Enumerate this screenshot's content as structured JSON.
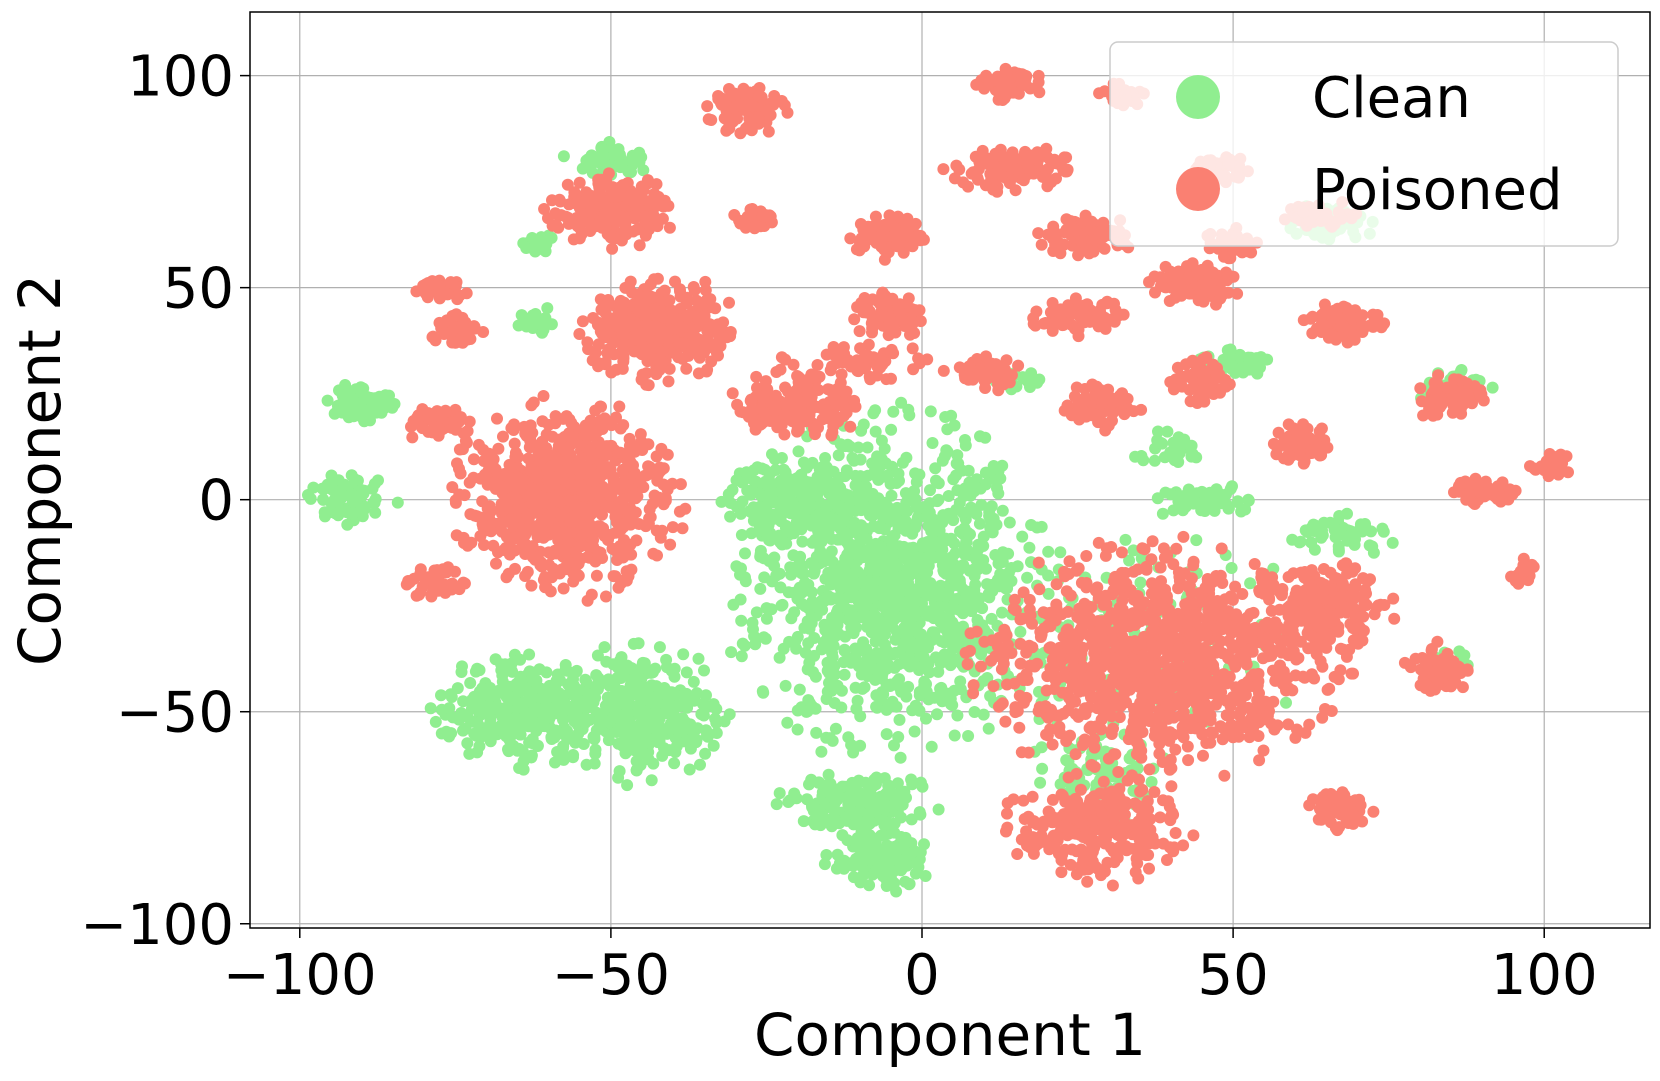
{
  "chart_data": {
    "type": "scatter",
    "title": "",
    "xlabel": "Component 1",
    "ylabel": "Component 2",
    "xlim": [
      -108,
      117
    ],
    "ylim": [
      -101,
      115
    ],
    "xticks": [
      -100,
      -50,
      0,
      50,
      100
    ],
    "yticks": [
      -100,
      -50,
      0,
      50,
      100
    ],
    "xtick_labels": [
      "−100",
      "−50",
      "0",
      "50",
      "100"
    ],
    "ytick_labels": [
      "−100",
      "−50",
      "0",
      "50",
      "100"
    ],
    "grid": true,
    "legend_position": "top-right",
    "series": [
      {
        "name": "Clean",
        "color": "#90ee90",
        "clusters": [
          {
            "cx": -5,
            "cy": -20,
            "rx": 24,
            "ry": 38,
            "n": 1200
          },
          {
            "cx": -10,
            "cy": -72,
            "rx": 12,
            "ry": 7,
            "n": 200
          },
          {
            "cx": -7,
            "cy": -85,
            "rx": 8,
            "ry": 7,
            "n": 140
          },
          {
            "cx": -45,
            "cy": -50,
            "rx": 15,
            "ry": 16,
            "n": 350
          },
          {
            "cx": -65,
            "cy": -50,
            "rx": 13,
            "ry": 12,
            "n": 280
          },
          {
            "cx": -20,
            "cy": 0,
            "rx": 12,
            "ry": 10,
            "n": 220
          },
          {
            "cx": -90,
            "cy": 23,
            "rx": 5,
            "ry": 5,
            "n": 70
          },
          {
            "cx": -92,
            "cy": 0,
            "rx": 7,
            "ry": 6,
            "n": 80
          },
          {
            "cx": -50,
            "cy": 80,
            "rx": 7,
            "ry": 4,
            "n": 60
          },
          {
            "cx": 45,
            "cy": 0,
            "rx": 8,
            "ry": 4,
            "n": 60
          },
          {
            "cx": 65,
            "cy": 65,
            "rx": 7,
            "ry": 5,
            "n": 60
          },
          {
            "cx": 68,
            "cy": -8,
            "rx": 8,
            "ry": 5,
            "n": 50
          },
          {
            "cx": 85,
            "cy": 27,
            "rx": 6,
            "ry": 5,
            "n": 40
          },
          {
            "cx": 50,
            "cy": 32,
            "rx": 6,
            "ry": 4,
            "n": 45
          },
          {
            "cx": 40,
            "cy": 12,
            "rx": 7,
            "ry": 4,
            "n": 35
          },
          {
            "cx": 15,
            "cy": 28,
            "rx": 4,
            "ry": 3,
            "n": 25
          },
          {
            "cx": -62,
            "cy": 42,
            "rx": 3,
            "ry": 4,
            "n": 25
          },
          {
            "cx": 35,
            "cy": -35,
            "rx": 25,
            "ry": 25,
            "n": 180
          },
          {
            "cx": 28,
            "cy": -65,
            "rx": 12,
            "ry": 10,
            "n": 80
          },
          {
            "cx": -62,
            "cy": 60,
            "rx": 3,
            "ry": 3,
            "n": 20
          },
          {
            "cx": 85,
            "cy": -38,
            "rx": 4,
            "ry": 4,
            "n": 25
          }
        ]
      },
      {
        "name": "Poisoned",
        "color": "#fa8072",
        "clusters": [
          {
            "cx": -57,
            "cy": 0,
            "rx": 17,
            "ry": 22,
            "n": 800
          },
          {
            "cx": -42,
            "cy": 40,
            "rx": 12,
            "ry": 12,
            "n": 380
          },
          {
            "cx": -50,
            "cy": 68,
            "rx": 10,
            "ry": 8,
            "n": 220
          },
          {
            "cx": 38,
            "cy": -38,
            "rx": 28,
            "ry": 26,
            "n": 1100
          },
          {
            "cx": 28,
            "cy": -78,
            "rx": 14,
            "ry": 12,
            "n": 300
          },
          {
            "cx": 65,
            "cy": -25,
            "rx": 10,
            "ry": 10,
            "n": 200
          },
          {
            "cx": -20,
            "cy": 22,
            "rx": 10,
            "ry": 8,
            "n": 180
          },
          {
            "cx": -28,
            "cy": 92,
            "rx": 6,
            "ry": 6,
            "n": 100
          },
          {
            "cx": 14,
            "cy": 98,
            "rx": 5,
            "ry": 4,
            "n": 70
          },
          {
            "cx": 14,
            "cy": 78,
            "rx": 10,
            "ry": 5,
            "n": 120
          },
          {
            "cx": -5,
            "cy": 62,
            "rx": 6,
            "ry": 5,
            "n": 90
          },
          {
            "cx": -5,
            "cy": 44,
            "rx": 6,
            "ry": 6,
            "n": 100
          },
          {
            "cx": 27,
            "cy": 62,
            "rx": 8,
            "ry": 5,
            "n": 100
          },
          {
            "cx": 44,
            "cy": 51,
            "rx": 7,
            "ry": 5,
            "n": 100
          },
          {
            "cx": 25,
            "cy": 43,
            "rx": 8,
            "ry": 4,
            "n": 80
          },
          {
            "cx": 29,
            "cy": 22,
            "rx": 6,
            "ry": 5,
            "n": 80
          },
          {
            "cx": 45,
            "cy": 28,
            "rx": 5,
            "ry": 5,
            "n": 80
          },
          {
            "cx": 85,
            "cy": 24,
            "rx": 6,
            "ry": 5,
            "n": 80
          },
          {
            "cx": 90,
            "cy": 2,
            "rx": 5,
            "ry": 3,
            "n": 70
          },
          {
            "cx": 68,
            "cy": 42,
            "rx": 6,
            "ry": 5,
            "n": 80
          },
          {
            "cx": 61,
            "cy": 13,
            "rx": 5,
            "ry": 5,
            "n": 60
          },
          {
            "cx": 67,
            "cy": -73,
            "rx": 5,
            "ry": 5,
            "n": 70
          },
          {
            "cx": 83,
            "cy": -40,
            "rx": 5,
            "ry": 6,
            "n": 70
          },
          {
            "cx": -78,
            "cy": 18,
            "rx": 5,
            "ry": 4,
            "n": 70
          },
          {
            "cx": -77,
            "cy": 50,
            "rx": 4,
            "ry": 3,
            "n": 40
          },
          {
            "cx": -75,
            "cy": 40,
            "rx": 4,
            "ry": 4,
            "n": 40
          },
          {
            "cx": -27,
            "cy": 66,
            "rx": 4,
            "ry": 3,
            "n": 40
          },
          {
            "cx": 32,
            "cy": 95,
            "rx": 4,
            "ry": 3,
            "n": 40
          },
          {
            "cx": 48,
            "cy": 78,
            "rx": 5,
            "ry": 4,
            "n": 40
          },
          {
            "cx": 64,
            "cy": 67,
            "rx": 6,
            "ry": 4,
            "n": 50
          },
          {
            "cx": -78,
            "cy": -20,
            "rx": 5,
            "ry": 4,
            "n": 40
          },
          {
            "cx": 101,
            "cy": 8,
            "rx": 3,
            "ry": 3,
            "n": 25
          },
          {
            "cx": 97,
            "cy": -17,
            "rx": 3,
            "ry": 3,
            "n": 20
          },
          {
            "cx": -10,
            "cy": 32,
            "rx": 12,
            "ry": 6,
            "n": 60
          },
          {
            "cx": 10,
            "cy": 30,
            "rx": 6,
            "ry": 4,
            "n": 50
          },
          {
            "cx": 50,
            "cy": 60,
            "rx": 5,
            "ry": 4,
            "n": 40
          }
        ]
      }
    ]
  }
}
